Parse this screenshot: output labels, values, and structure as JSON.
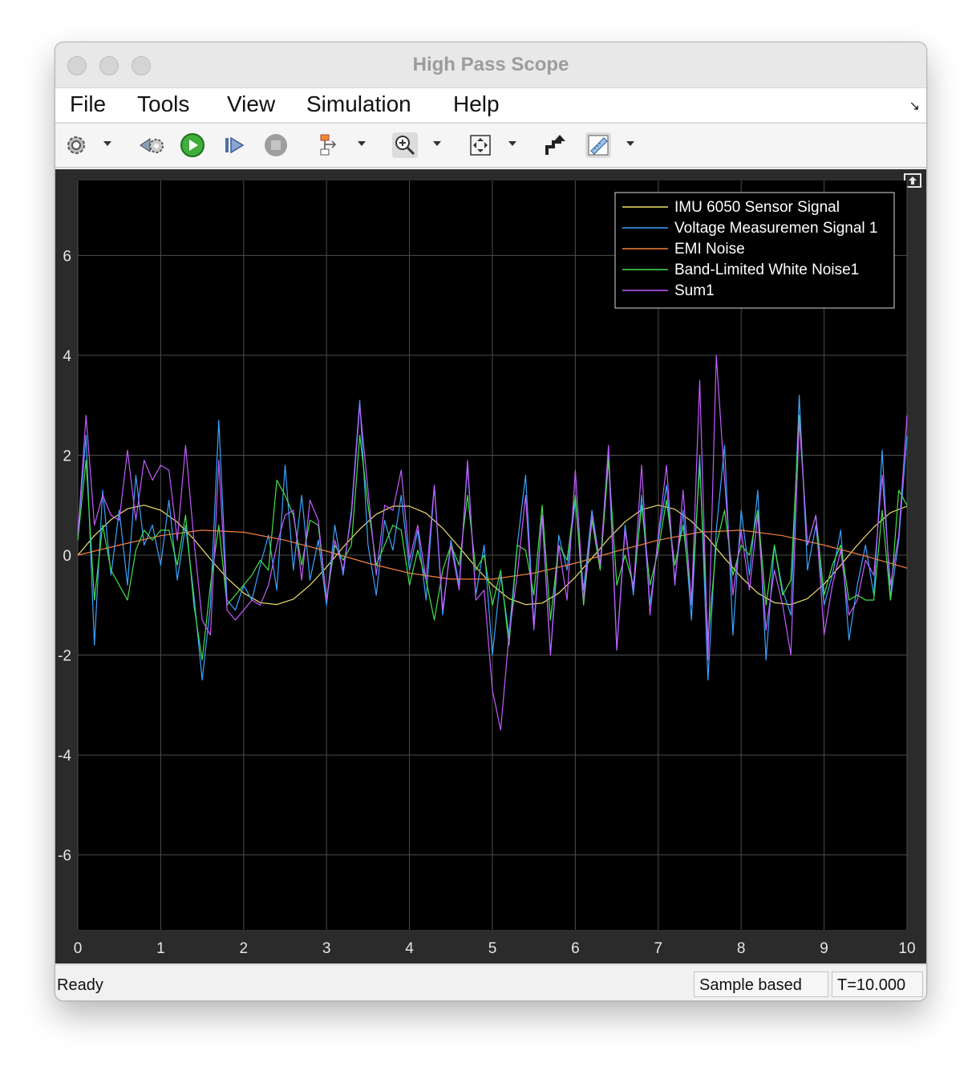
{
  "window": {
    "title": "High Pass Scope"
  },
  "menu": {
    "items": [
      "File",
      "Tools",
      "View",
      "Simulation",
      "Help"
    ]
  },
  "toolbar": {
    "buttons": [
      "gear-icon",
      "step-back-icon",
      "run-icon",
      "step-forward-icon",
      "stop-icon",
      "signal-select-icon",
      "zoom-in-icon",
      "fit-axes-icon",
      "highlight-block-icon",
      "measurements-icon"
    ]
  },
  "status": {
    "left": "Ready",
    "mode": "Sample based",
    "time": "T=10.000"
  },
  "colors": {
    "background": "#000000",
    "grid": "#4d4d4d",
    "tick_text": "#e6e6e6"
  },
  "chart_data": {
    "type": "line",
    "title": "",
    "xlabel": "",
    "ylabel": "",
    "xlim": [
      0,
      10
    ],
    "ylim": [
      -7.5,
      7.5
    ],
    "xticks": [
      0,
      1,
      2,
      3,
      4,
      5,
      6,
      7,
      8,
      9,
      10
    ],
    "yticks": [
      -6,
      -4,
      -2,
      0,
      2,
      4,
      6
    ],
    "grid": true,
    "legend_position": "top-right",
    "series": [
      {
        "name": "IMU 6050 Sensor Signal",
        "color": "#f0e06c",
        "x": [
          0,
          0.2,
          0.4,
          0.6,
          0.8,
          1.0,
          1.2,
          1.4,
          1.6,
          1.8,
          2.0,
          2.2,
          2.4,
          2.6,
          2.8,
          3.0,
          3.2,
          3.4,
          3.6,
          3.8,
          4.0,
          4.2,
          4.4,
          4.6,
          4.8,
          5.0,
          5.2,
          5.4,
          5.6,
          5.8,
          6.0,
          6.2,
          6.4,
          6.6,
          6.8,
          7.0,
          7.2,
          7.4,
          7.6,
          7.8,
          8.0,
          8.2,
          8.4,
          8.6,
          8.8,
          9.0,
          9.2,
          9.4,
          9.6,
          9.8,
          10.0
        ],
        "y": [
          0,
          0.39,
          0.71,
          0.93,
          1.0,
          0.9,
          0.66,
          0.32,
          -0.08,
          -0.46,
          -0.76,
          -0.95,
          -0.99,
          -0.88,
          -0.6,
          -0.24,
          0.16,
          0.52,
          0.82,
          0.98,
          0.98,
          0.84,
          0.54,
          0.16,
          -0.24,
          -0.6,
          -0.87,
          -0.99,
          -0.96,
          -0.76,
          -0.44,
          -0.06,
          0.33,
          0.67,
          0.91,
          1.0,
          0.92,
          0.68,
          0.34,
          -0.06,
          -0.44,
          -0.76,
          -0.95,
          -0.99,
          -0.87,
          -0.58,
          -0.2,
          0.2,
          0.56,
          0.85,
          0.98
        ]
      },
      {
        "name": "Voltage Measuremen Signal 1",
        "color": "#3aa3ff",
        "x": [
          0,
          0.1,
          0.2,
          0.3,
          0.4,
          0.5,
          0.6,
          0.7,
          0.8,
          0.9,
          1.0,
          1.1,
          1.2,
          1.3,
          1.4,
          1.5,
          1.6,
          1.7,
          1.8,
          1.9,
          2.0,
          2.1,
          2.2,
          2.3,
          2.4,
          2.5,
          2.6,
          2.7,
          2.8,
          2.9,
          3.0,
          3.1,
          3.2,
          3.3,
          3.4,
          3.5,
          3.6,
          3.7,
          3.8,
          3.9,
          4.0,
          4.1,
          4.2,
          4.3,
          4.4,
          4.5,
          4.6,
          4.7,
          4.8,
          4.9,
          5.0,
          5.1,
          5.2,
          5.3,
          5.4,
          5.5,
          5.6,
          5.7,
          5.8,
          5.9,
          6.0,
          6.1,
          6.2,
          6.3,
          6.4,
          6.5,
          6.6,
          6.7,
          6.8,
          6.9,
          7.0,
          7.1,
          7.2,
          7.3,
          7.4,
          7.5,
          7.6,
          7.7,
          7.8,
          7.9,
          8.0,
          8.1,
          8.2,
          8.3,
          8.4,
          8.5,
          8.6,
          8.7,
          8.8,
          8.9,
          9.0,
          9.1,
          9.2,
          9.3,
          9.4,
          9.5,
          9.6,
          9.7,
          9.8,
          9.9,
          10.0
        ],
        "y": [
          0.4,
          2.4,
          -1.8,
          1.3,
          -0.4,
          0.9,
          -0.6,
          1.6,
          0.2,
          0.6,
          -0.2,
          1.1,
          -0.5,
          0.6,
          -0.8,
          -2.5,
          -1.0,
          2.7,
          -0.9,
          -1.1,
          -0.6,
          -0.9,
          -0.2,
          0.4,
          -0.7,
          1.8,
          -0.3,
          1.2,
          -0.5,
          0.3,
          -1.0,
          0.6,
          -0.4,
          0.9,
          3.1,
          0.2,
          -0.8,
          0.7,
          0.1,
          1.2,
          -0.3,
          0.5,
          -0.9,
          1.4,
          -1.2,
          0.3,
          -0.6,
          1.8,
          -0.8,
          0.2,
          -2.0,
          -0.4,
          -1.6,
          0.2,
          1.6,
          -1.4,
          0.8,
          -2.0,
          0.4,
          -0.3,
          1.1,
          -0.7,
          0.9,
          -0.2,
          2.0,
          -1.9,
          0.6,
          -0.8,
          1.2,
          -1.0,
          0.3,
          1.4,
          -0.5,
          0.9,
          -1.3,
          2.0,
          -2.5,
          0.5,
          2.2,
          -1.6,
          0.9,
          -0.4,
          1.3,
          -2.1,
          0.2,
          -0.7,
          -1.2,
          3.2,
          -0.3,
          0.6,
          -1.0,
          -0.4,
          0.5,
          -1.7,
          -0.6,
          0.2,
          -0.8,
          2.1,
          -0.9,
          0.3,
          2.4
        ]
      },
      {
        "name": "EMI Noise",
        "color": "#f5803e",
        "x": [
          0,
          0.5,
          1.0,
          1.5,
          2.0,
          2.5,
          3.0,
          3.5,
          4.0,
          4.5,
          5.0,
          5.5,
          6.0,
          6.5,
          7.0,
          7.5,
          8.0,
          8.5,
          9.0,
          9.5,
          10.0
        ],
        "y": [
          0,
          0.2,
          0.39,
          0.5,
          0.46,
          0.3,
          0.08,
          -0.16,
          -0.36,
          -0.48,
          -0.48,
          -0.36,
          -0.16,
          0.08,
          0.3,
          0.46,
          0.5,
          0.39,
          0.2,
          -0.02,
          -0.26
        ]
      },
      {
        "name": "Band-Limited White Noise1",
        "color": "#44e04a",
        "x": [
          0,
          0.1,
          0.2,
          0.3,
          0.4,
          0.5,
          0.6,
          0.7,
          0.8,
          0.9,
          1.0,
          1.1,
          1.2,
          1.3,
          1.4,
          1.5,
          1.6,
          1.7,
          1.8,
          1.9,
          2.0,
          2.1,
          2.2,
          2.3,
          2.4,
          2.5,
          2.6,
          2.7,
          2.8,
          2.9,
          3.0,
          3.1,
          3.2,
          3.3,
          3.4,
          3.5,
          3.6,
          3.7,
          3.8,
          3.9,
          4.0,
          4.1,
          4.2,
          4.3,
          4.4,
          4.5,
          4.6,
          4.7,
          4.8,
          4.9,
          5.0,
          5.1,
          5.2,
          5.3,
          5.4,
          5.5,
          5.6,
          5.7,
          5.8,
          5.9,
          6.0,
          6.1,
          6.2,
          6.3,
          6.4,
          6.5,
          6.6,
          6.7,
          6.8,
          6.9,
          7.0,
          7.1,
          7.2,
          7.3,
          7.4,
          7.5,
          7.6,
          7.7,
          7.8,
          7.9,
          8.0,
          8.1,
          8.2,
          8.3,
          8.4,
          8.5,
          8.6,
          8.7,
          8.8,
          8.9,
          9.0,
          9.1,
          9.2,
          9.3,
          9.4,
          9.5,
          9.6,
          9.7,
          9.8,
          9.9,
          10.0
        ],
        "y": [
          0.3,
          1.9,
          -0.9,
          0.6,
          -0.3,
          -0.6,
          -0.9,
          0.1,
          0.5,
          0.3,
          0.5,
          0.5,
          -0.2,
          0.8,
          -1.0,
          -2.1,
          -0.6,
          0.6,
          -1.0,
          -0.8,
          -0.6,
          -0.4,
          -0.1,
          -0.3,
          1.5,
          1.2,
          0.8,
          -0.2,
          0.7,
          0.6,
          -0.9,
          0.2,
          -0.1,
          0.2,
          2.4,
          1.0,
          -0.2,
          0.2,
          0.6,
          0.5,
          -0.6,
          0.1,
          -0.5,
          -1.3,
          -0.3,
          0.2,
          -0.2,
          1.2,
          -0.3,
          0.0,
          -1.0,
          -0.3,
          -1.8,
          0.2,
          0.1,
          -0.8,
          1.0,
          -1.3,
          0.2,
          -0.1,
          1.2,
          -1.0,
          0.7,
          -0.3,
          1.9,
          -0.6,
          0.0,
          -0.6,
          1.0,
          -0.6,
          0.1,
          1.1,
          -0.2,
          0.6,
          -0.9,
          1.8,
          -1.7,
          0.2,
          0.9,
          -0.4,
          0.2,
          0.0,
          0.9,
          -1.0,
          0.2,
          -0.8,
          -0.5,
          2.8,
          0.2,
          0.8,
          -0.8,
          -0.2,
          0.2,
          -0.9,
          -0.8,
          -0.9,
          -0.9,
          0.9,
          -0.9,
          1.3,
          1.0
        ]
      },
      {
        "name": "Sum1",
        "color": "#c45bff",
        "x": [
          0,
          0.1,
          0.2,
          0.3,
          0.4,
          0.5,
          0.6,
          0.7,
          0.8,
          0.9,
          1.0,
          1.1,
          1.2,
          1.3,
          1.4,
          1.5,
          1.6,
          1.7,
          1.8,
          1.9,
          2.0,
          2.1,
          2.2,
          2.3,
          2.4,
          2.5,
          2.6,
          2.7,
          2.8,
          2.9,
          3.0,
          3.1,
          3.2,
          3.3,
          3.4,
          3.5,
          3.6,
          3.7,
          3.8,
          3.9,
          4.0,
          4.1,
          4.2,
          4.3,
          4.4,
          4.5,
          4.6,
          4.7,
          4.8,
          4.9,
          5.0,
          5.1,
          5.2,
          5.3,
          5.4,
          5.5,
          5.6,
          5.7,
          5.8,
          5.9,
          6.0,
          6.1,
          6.2,
          6.3,
          6.4,
          6.5,
          6.6,
          6.7,
          6.8,
          6.9,
          7.0,
          7.1,
          7.2,
          7.3,
          7.4,
          7.5,
          7.6,
          7.7,
          7.8,
          7.9,
          8.0,
          8.1,
          8.2,
          8.3,
          8.4,
          8.5,
          8.6,
          8.7,
          8.8,
          8.9,
          9.0,
          9.1,
          9.2,
          9.3,
          9.4,
          9.5,
          9.6,
          9.7,
          9.8,
          9.9,
          10.0
        ],
        "y": [
          0.4,
          2.8,
          0.6,
          1.2,
          0.8,
          0.7,
          2.1,
          0.7,
          1.9,
          1.5,
          1.8,
          1.7,
          0.3,
          2.2,
          0.3,
          -1.3,
          -1.6,
          1.9,
          -1.1,
          -1.3,
          -1.1,
          -0.9,
          -1.0,
          -0.6,
          0.2,
          0.8,
          0.9,
          -0.5,
          1.1,
          0.7,
          -0.9,
          0.3,
          -0.3,
          0.8,
          3.0,
          1.3,
          -0.4,
          1.0,
          0.9,
          1.7,
          -0.1,
          0.6,
          -0.5,
          1.4,
          -1.1,
          0.2,
          -0.7,
          1.9,
          -0.9,
          -0.7,
          -2.7,
          -3.5,
          -1.6,
          -0.4,
          1.2,
          -1.5,
          0.8,
          -2.0,
          0.2,
          -0.9,
          1.7,
          -0.9,
          0.8,
          -0.2,
          2.2,
          -1.9,
          0.5,
          -0.7,
          1.8,
          -1.2,
          0.4,
          1.8,
          -0.6,
          1.3,
          -1.0,
          3.5,
          -2.1,
          4.0,
          1.5,
          -0.8,
          0.5,
          -0.7,
          0.8,
          -1.5,
          -0.3,
          -1.0,
          -2.0,
          2.7,
          0.2,
          0.8,
          -1.6,
          -0.6,
          0.1,
          -1.2,
          -0.9,
          -0.1,
          -0.4,
          1.6,
          -0.6,
          0.4,
          2.8
        ]
      }
    ]
  }
}
